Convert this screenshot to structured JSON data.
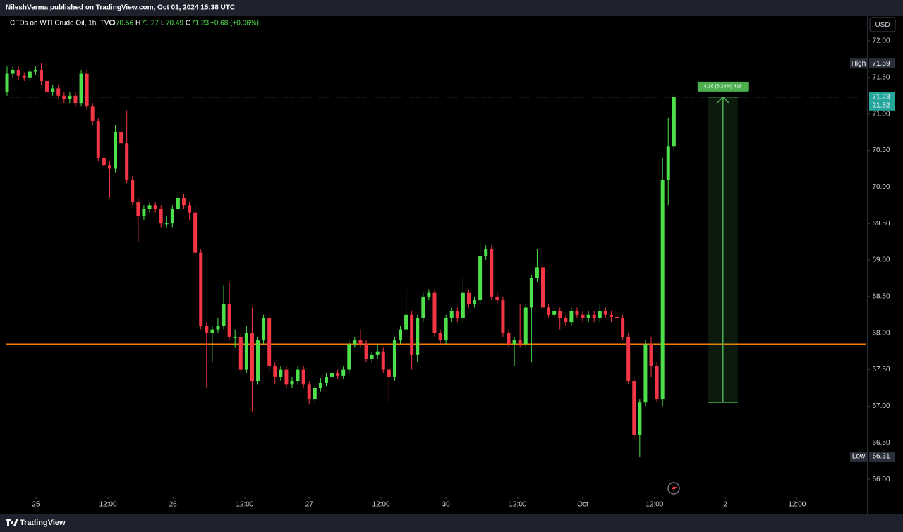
{
  "chart_data": {
    "type": "candlestick",
    "header": "NileshVerma published on TradingView.com, Oct 01, 2024 15:38 UTC",
    "legend": {
      "symbol": "CFDs on WTI Crude Oil, 1h, TVC",
      "open_label": "O",
      "open": 70.56,
      "high_label": "H",
      "high": 71.27,
      "low_label": "L",
      "low": 70.49,
      "close_label": "C",
      "close": 71.23,
      "change": "+0.68 (+0.96%)"
    },
    "currency": "USD",
    "brand": "TradingView",
    "up_color": "#4ee04a",
    "down_color": "#f23645",
    "x": [
      0,
      1,
      2,
      3,
      4,
      5,
      6,
      7,
      8,
      9,
      10,
      11,
      12,
      13,
      14,
      15,
      16,
      17,
      18,
      19,
      20,
      21,
      22,
      23,
      24,
      25,
      26,
      27,
      28,
      29,
      30,
      31,
      32,
      33,
      34,
      35,
      36,
      37,
      38,
      39,
      40,
      41,
      42,
      43,
      44,
      45,
      46,
      47,
      48,
      49,
      50,
      51,
      52,
      53,
      54,
      55,
      56,
      57,
      58,
      59,
      60,
      61,
      62,
      63,
      64,
      65,
      66,
      67,
      68,
      69,
      70,
      71,
      72,
      73,
      74,
      75,
      76,
      77,
      78,
      79,
      80,
      81,
      82,
      83,
      84,
      85,
      86,
      87,
      88,
      89,
      90,
      91,
      92,
      93,
      94,
      95,
      96,
      97,
      98,
      99,
      100,
      101,
      102,
      103,
      104,
      105,
      106,
      107,
      108,
      109,
      110,
      111,
      112,
      113,
      114,
      115,
      116,
      117
    ],
    "open": [
      71.3,
      71.55,
      71.6,
      71.52,
      71.5,
      71.58,
      71.6,
      71.45,
      71.3,
      71.35,
      71.25,
      71.2,
      71.25,
      71.15,
      71.55,
      71.1,
      70.9,
      70.4,
      70.3,
      70.25,
      70.75,
      70.6,
      70.1,
      69.8,
      69.6,
      69.7,
      69.75,
      69.7,
      69.5,
      69.5,
      69.7,
      69.85,
      69.75,
      69.65,
      69.1,
      68.1,
      68.0,
      68.05,
      68.1,
      68.4,
      67.95,
      67.95,
      67.5,
      68.0,
      67.35,
      67.9,
      68.2,
      67.55,
      67.4,
      67.5,
      67.3,
      67.35,
      67.5,
      67.3,
      67.1,
      67.25,
      67.32,
      67.4,
      67.45,
      67.42,
      67.5,
      67.85,
      67.9,
      67.85,
      67.65,
      67.7,
      67.75,
      67.5,
      67.4,
      67.9,
      68.05,
      68.25,
      67.7,
      68.2,
      68.5,
      68.55,
      68.0,
      67.9,
      68.2,
      68.3,
      68.2,
      68.55,
      68.4,
      68.45,
      69.05,
      69.15,
      68.5,
      68.45,
      68.0,
      67.85,
      67.9,
      67.85,
      68.35,
      68.75,
      68.9,
      68.35,
      68.25,
      68.3,
      68.2,
      68.15,
      68.3,
      68.25,
      68.2,
      68.25,
      68.2,
      68.3,
      68.25,
      68.22,
      68.2,
      67.95,
      67.35,
      66.6,
      67.05,
      67.85,
      67.55,
      67.1,
      70.1,
      70.56
    ],
    "high": [
      71.65,
      71.65,
      71.65,
      71.57,
      71.63,
      71.65,
      71.69,
      71.5,
      71.4,
      71.4,
      71.3,
      71.3,
      71.3,
      71.6,
      71.6,
      71.15,
      70.95,
      70.45,
      70.35,
      70.85,
      71.0,
      71.05,
      70.15,
      69.85,
      69.75,
      69.8,
      69.8,
      69.75,
      69.6,
      69.75,
      69.95,
      69.9,
      69.8,
      69.75,
      69.15,
      68.15,
      68.1,
      68.2,
      68.65,
      68.7,
      68.05,
      68.0,
      68.1,
      68.35,
      67.95,
      68.25,
      68.25,
      67.6,
      67.55,
      67.55,
      67.4,
      67.55,
      67.55,
      67.35,
      67.3,
      67.38,
      67.45,
      67.5,
      67.5,
      67.55,
      67.9,
      67.95,
      68.05,
      67.9,
      67.75,
      67.85,
      67.8,
      67.55,
      67.95,
      68.1,
      68.6,
      68.3,
      68.25,
      68.55,
      68.6,
      68.6,
      68.05,
      68.25,
      68.35,
      68.35,
      68.75,
      68.6,
      68.5,
      69.25,
      69.2,
      69.2,
      68.55,
      68.5,
      68.05,
      67.95,
      68.4,
      68.4,
      68.8,
      69.15,
      68.95,
      68.4,
      68.35,
      68.35,
      68.25,
      68.35,
      68.35,
      68.3,
      68.3,
      68.3,
      68.4,
      68.35,
      68.3,
      68.3,
      68.25,
      68.0,
      67.4,
      67.1,
      67.9,
      67.95,
      67.6,
      70.4,
      70.95,
      71.27
    ],
    "low": [
      71.25,
      71.5,
      71.47,
      71.45,
      71.45,
      71.53,
      71.4,
      71.25,
      71.25,
      71.2,
      71.15,
      71.15,
      71.1,
      71.1,
      71.05,
      70.85,
      70.35,
      70.25,
      69.85,
      70.2,
      70.55,
      70.05,
      69.75,
      69.25,
      69.55,
      69.65,
      69.65,
      69.45,
      69.45,
      69.45,
      69.65,
      69.7,
      69.55,
      69.05,
      68.05,
      67.25,
      67.6,
      68.0,
      68.05,
      67.9,
      67.8,
      67.45,
      67.45,
      66.92,
      67.3,
      67.85,
      67.45,
      67.3,
      67.35,
      67.25,
      67.25,
      67.3,
      67.25,
      67.02,
      67.05,
      67.2,
      67.27,
      67.35,
      67.37,
      67.37,
      67.45,
      67.8,
      67.8,
      67.6,
      67.6,
      67.65,
      67.45,
      67.05,
      67.35,
      67.85,
      68.0,
      67.5,
      67.6,
      68.15,
      68.45,
      67.95,
      67.85,
      67.85,
      68.15,
      68.15,
      68.15,
      68.35,
      68.35,
      68.4,
      69.0,
      68.45,
      68.4,
      67.95,
      67.8,
      67.55,
      67.8,
      67.8,
      67.6,
      68.7,
      68.3,
      68.2,
      68.2,
      68.05,
      68.1,
      68.1,
      68.2,
      68.15,
      68.15,
      68.15,
      68.15,
      68.2,
      68.15,
      68.15,
      67.9,
      67.3,
      66.55,
      66.31,
      67.0,
      67.4,
      67.05,
      67.0,
      69.75,
      70.49
    ],
    "close": [
      71.55,
      71.6,
      71.52,
      71.5,
      71.58,
      71.6,
      71.45,
      71.3,
      71.35,
      71.25,
      71.2,
      71.25,
      71.15,
      71.55,
      71.1,
      70.9,
      70.4,
      70.3,
      70.25,
      70.75,
      70.6,
      70.1,
      69.8,
      69.6,
      69.7,
      69.75,
      69.7,
      69.5,
      69.5,
      69.7,
      69.85,
      69.75,
      69.65,
      69.1,
      68.1,
      68.0,
      68.05,
      68.1,
      68.4,
      67.95,
      67.95,
      67.5,
      68.0,
      67.35,
      67.9,
      68.2,
      67.55,
      67.4,
      67.5,
      67.3,
      67.35,
      67.5,
      67.3,
      67.1,
      67.25,
      67.32,
      67.4,
      67.45,
      67.42,
      67.5,
      67.85,
      67.9,
      67.85,
      67.65,
      67.7,
      67.75,
      67.5,
      67.4,
      67.9,
      68.05,
      68.25,
      67.7,
      68.2,
      68.5,
      68.55,
      68.0,
      67.9,
      68.2,
      68.3,
      68.2,
      68.55,
      68.4,
      68.45,
      69.05,
      69.15,
      68.5,
      68.45,
      68.0,
      67.85,
      67.9,
      67.85,
      68.35,
      68.75,
      68.9,
      68.35,
      68.25,
      68.3,
      68.2,
      68.15,
      68.3,
      68.25,
      68.2,
      68.25,
      68.2,
      68.3,
      68.25,
      68.22,
      68.2,
      67.95,
      67.35,
      66.6,
      67.05,
      67.85,
      67.55,
      67.1,
      70.1,
      70.56,
      71.23
    ],
    "xlim": [
      -0.25,
      150.75
    ],
    "xticks": [
      {
        "value": 5.07,
        "label": "25"
      },
      {
        "value": 17.7,
        "label": "12:00"
      },
      {
        "value": 29.1,
        "label": "26"
      },
      {
        "value": 41.7,
        "label": "12:00"
      },
      {
        "value": 53.0,
        "label": "27"
      },
      {
        "value": 65.6,
        "label": "12:00"
      },
      {
        "value": 77.0,
        "label": "30"
      },
      {
        "value": 89.6,
        "label": "12:00"
      },
      {
        "value": 101.0,
        "label": "Oct"
      },
      {
        "value": 113.6,
        "label": "12:00"
      },
      {
        "value": 126.0,
        "label": "2"
      },
      {
        "value": 138.6,
        "label": "12:00"
      }
    ],
    "ylim": [
      65.76,
      72.27
    ],
    "yticks": [
      {
        "value": 66,
        "label": "66.00"
      },
      {
        "value": 66.5,
        "label": "66.50"
      },
      {
        "value": 67,
        "label": "67.00"
      },
      {
        "value": 67.5,
        "label": "67.50"
      },
      {
        "value": 68,
        "label": "68.00"
      },
      {
        "value": 68.5,
        "label": "68.50"
      },
      {
        "value": 69,
        "label": "69.00"
      },
      {
        "value": 69.5,
        "label": "69.50"
      },
      {
        "value": 70,
        "label": "70.00"
      },
      {
        "value": 70.5,
        "label": "70.50"
      },
      {
        "value": 71,
        "label": "71.00"
      },
      {
        "value": 71.5,
        "label": "71.50"
      },
      {
        "value": 72,
        "label": "72.00"
      }
    ],
    "grid": false,
    "hline": {
      "value": 67.85,
      "color": "#f57c00"
    },
    "high_marker": {
      "text": "High",
      "value": 71.69
    },
    "low_marker": {
      "text": "Low",
      "value": 66.31
    },
    "price_label": {
      "value": 71.23,
      "countdown": "21:52",
      "color": "#26a69a"
    },
    "measure": {
      "label": "4.18 (6.24%) 418",
      "from": 67.05,
      "to": 71.23,
      "x": [
        123.0,
        128.2
      ],
      "color": "#4caf50"
    }
  }
}
